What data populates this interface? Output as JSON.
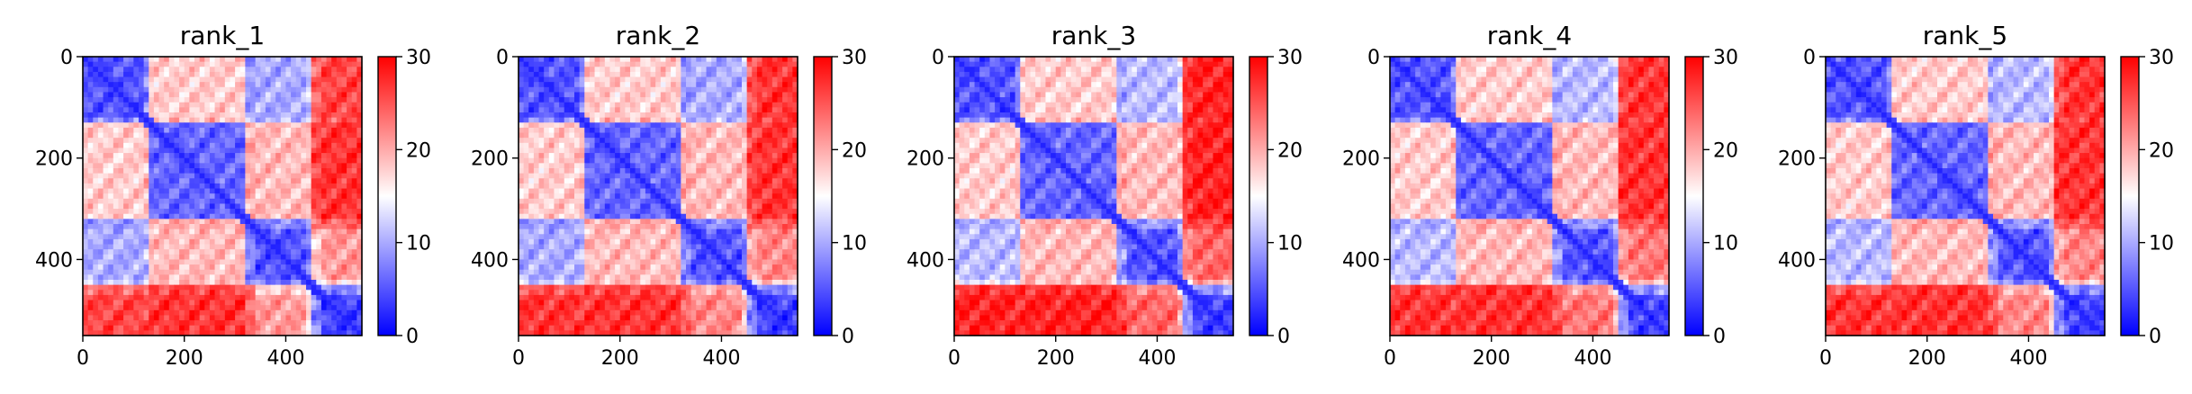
{
  "chart_data": [
    {
      "type": "heatmap",
      "title": "rank_1",
      "xlim": [
        0,
        550
      ],
      "ylim": [
        550,
        0
      ],
      "xticks": [
        0,
        200,
        400
      ],
      "yticks": [
        0,
        200,
        400
      ],
      "colorbar": {
        "min": 0,
        "max": 30,
        "ticks": [
          0,
          10,
          20,
          30
        ],
        "colormap": "bwr"
      },
      "x_breaks": [
        0,
        120,
        130,
        320,
        340,
        440,
        450,
        470,
        550
      ],
      "z_blocks": [
        [
          5,
          8,
          18,
          9,
          10,
          12,
          24,
          26
        ],
        [
          8,
          7,
          19,
          10,
          11,
          12,
          23,
          25
        ],
        [
          18,
          19,
          6,
          20,
          19,
          19,
          26,
          27
        ],
        [
          9,
          10,
          20,
          6,
          8,
          10,
          22,
          24
        ],
        [
          10,
          11,
          19,
          8,
          5,
          7,
          18,
          21
        ],
        [
          12,
          12,
          19,
          10,
          7,
          5,
          14,
          17
        ],
        [
          24,
          23,
          26,
          22,
          18,
          14,
          4,
          8
        ],
        [
          26,
          25,
          27,
          24,
          21,
          17,
          8,
          4
        ]
      ]
    },
    {
      "type": "heatmap",
      "title": "rank_2",
      "xlim": [
        0,
        550
      ],
      "ylim": [
        550,
        0
      ],
      "xticks": [
        0,
        200,
        400
      ],
      "yticks": [
        0,
        200,
        400
      ],
      "colorbar": {
        "min": 0,
        "max": 30,
        "ticks": [
          0,
          10,
          20,
          30
        ],
        "colormap": "bwr"
      },
      "x_breaks": [
        0,
        120,
        130,
        320,
        340,
        440,
        450,
        470,
        550
      ],
      "z_blocks": [
        [
          5,
          8,
          18,
          9,
          10,
          12,
          25,
          27
        ],
        [
          8,
          7,
          19,
          10,
          11,
          12,
          24,
          26
        ],
        [
          18,
          19,
          6,
          20,
          19,
          19,
          26,
          27
        ],
        [
          9,
          10,
          20,
          6,
          8,
          10,
          23,
          24
        ],
        [
          10,
          11,
          19,
          8,
          5,
          7,
          20,
          22
        ],
        [
          12,
          12,
          19,
          10,
          7,
          5,
          16,
          18
        ],
        [
          25,
          24,
          26,
          23,
          20,
          16,
          4,
          8
        ],
        [
          27,
          26,
          27,
          24,
          22,
          18,
          8,
          4
        ]
      ]
    },
    {
      "type": "heatmap",
      "title": "rank_3",
      "xlim": [
        0,
        550
      ],
      "ylim": [
        550,
        0
      ],
      "xticks": [
        0,
        200,
        400
      ],
      "yticks": [
        0,
        200,
        400
      ],
      "colorbar": {
        "min": 0,
        "max": 30,
        "ticks": [
          0,
          10,
          20,
          30
        ],
        "colormap": "bwr"
      },
      "x_breaks": [
        0,
        120,
        130,
        320,
        340,
        440,
        450,
        470,
        550
      ],
      "z_blocks": [
        [
          5,
          8,
          18,
          10,
          11,
          14,
          27,
          28
        ],
        [
          8,
          7,
          19,
          10,
          11,
          13,
          26,
          27
        ],
        [
          18,
          19,
          6,
          20,
          19,
          19,
          27,
          28
        ],
        [
          10,
          10,
          20,
          6,
          9,
          11,
          25,
          26
        ],
        [
          11,
          11,
          19,
          9,
          5,
          8,
          22,
          24
        ],
        [
          14,
          13,
          19,
          11,
          8,
          5,
          18,
          20
        ],
        [
          27,
          26,
          27,
          25,
          22,
          18,
          4,
          9
        ],
        [
          28,
          27,
          28,
          26,
          24,
          20,
          9,
          4
        ]
      ]
    },
    {
      "type": "heatmap",
      "title": "rank_4",
      "xlim": [
        0,
        550
      ],
      "ylim": [
        550,
        0
      ],
      "xticks": [
        0,
        200,
        400
      ],
      "yticks": [
        0,
        200,
        400
      ],
      "colorbar": {
        "min": 0,
        "max": 30,
        "ticks": [
          0,
          10,
          20,
          30
        ],
        "colormap": "bwr"
      },
      "x_breaks": [
        0,
        120,
        130,
        320,
        340,
        440,
        450,
        470,
        550
      ],
      "z_blocks": [
        [
          5,
          8,
          18,
          10,
          11,
          13,
          26,
          27
        ],
        [
          8,
          7,
          19,
          10,
          11,
          13,
          25,
          26
        ],
        [
          18,
          19,
          6,
          20,
          19,
          19,
          27,
          27
        ],
        [
          10,
          10,
          20,
          6,
          9,
          11,
          24,
          25
        ],
        [
          11,
          11,
          19,
          9,
          5,
          8,
          21,
          23
        ],
        [
          13,
          13,
          19,
          11,
          8,
          5,
          17,
          19
        ],
        [
          26,
          25,
          27,
          24,
          21,
          17,
          4,
          9
        ],
        [
          27,
          26,
          27,
          25,
          23,
          19,
          9,
          4
        ]
      ]
    },
    {
      "type": "heatmap",
      "title": "rank_5",
      "xlim": [
        0,
        550
      ],
      "ylim": [
        550,
        0
      ],
      "xticks": [
        0,
        200,
        400
      ],
      "yticks": [
        0,
        200,
        400
      ],
      "colorbar": {
        "min": 0,
        "max": 30,
        "ticks": [
          0,
          10,
          20,
          30
        ],
        "colormap": "bwr"
      },
      "x_breaks": [
        0,
        120,
        130,
        320,
        340,
        440,
        450,
        470,
        550
      ],
      "z_blocks": [
        [
          5,
          8,
          18,
          10,
          11,
          13,
          25,
          27
        ],
        [
          8,
          7,
          19,
          10,
          11,
          13,
          24,
          26
        ],
        [
          18,
          19,
          6,
          20,
          19,
          19,
          27,
          27
        ],
        [
          10,
          10,
          20,
          6,
          9,
          11,
          23,
          25
        ],
        [
          11,
          11,
          19,
          9,
          5,
          8,
          20,
          22
        ],
        [
          13,
          13,
          19,
          11,
          8,
          5,
          16,
          18
        ],
        [
          25,
          24,
          27,
          23,
          20,
          16,
          4,
          8
        ],
        [
          27,
          26,
          27,
          25,
          22,
          18,
          8,
          4
        ]
      ]
    }
  ]
}
